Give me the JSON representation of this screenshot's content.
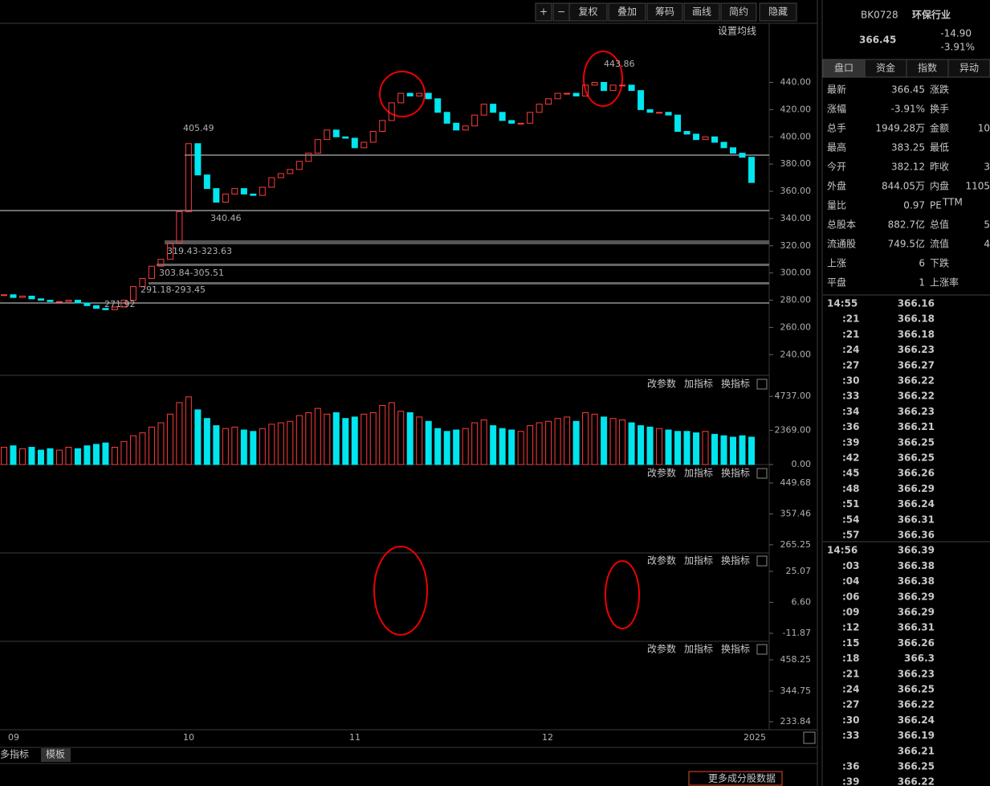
{
  "toolbar": [
    "+",
    "−",
    "复权",
    "叠加",
    "筹码",
    "画线",
    "简约",
    "隐藏"
  ],
  "panel_buttons": [
    "改参数",
    "加指标",
    "换指标"
  ],
  "bottom_tabs": [
    "多指标",
    "模板"
  ],
  "more_button": "更多成分股数据",
  "chart_data": {
    "type": "candlestick",
    "ma_button": "设置均线",
    "closes": [
      284,
      282,
      283,
      281,
      280,
      279,
      279,
      280,
      278,
      276,
      274,
      273,
      275,
      280,
      290,
      296,
      305,
      310,
      322,
      345,
      395,
      372,
      362,
      352,
      358,
      362,
      358,
      357,
      363,
      370,
      373,
      376,
      382,
      388,
      398,
      405,
      400,
      399,
      392,
      396,
      404,
      412,
      425,
      432,
      430,
      432,
      428,
      418,
      410,
      405,
      408,
      416,
      424,
      418,
      412,
      410,
      410,
      418,
      424,
      428,
      432,
      432,
      430,
      438,
      440,
      434,
      438,
      438,
      434,
      420,
      418,
      418,
      416,
      404,
      402,
      398,
      400,
      396,
      392,
      388,
      385,
      366.45
    ],
    "ylim": [
      226,
      471
    ],
    "yticks": [
      {
        "value": 440,
        "label": "440.00"
      },
      {
        "value": 420,
        "label": "420.00"
      },
      {
        "value": 400,
        "label": "400.00"
      },
      {
        "value": 380,
        "label": "380.00"
      },
      {
        "value": 360,
        "label": "360.00"
      },
      {
        "value": 340,
        "label": "340.00"
      },
      {
        "value": 320,
        "label": "320.00"
      },
      {
        "value": 300,
        "label": "300.00"
      },
      {
        "value": 280,
        "label": "280.00"
      },
      {
        "value": 260,
        "label": "260.00"
      },
      {
        "value": 240,
        "label": "240.00"
      }
    ],
    "annotations": [
      "405.49",
      "340.46",
      "319.43-323.63",
      "303.84-305.51",
      "291.18-293.45",
      "271.92",
      "443.86"
    ],
    "volume": {
      "values": [
        1200,
        1300,
        1100,
        1200,
        1000,
        1100,
        1000,
        1200,
        1100,
        1300,
        1400,
        1500,
        1200,
        1600,
        2000,
        2200,
        2600,
        2900,
        3500,
        4300,
        4700,
        3800,
        3200,
        2700,
        2500,
        2600,
        2400,
        2300,
        2500,
        2800,
        2900,
        3000,
        3400,
        3600,
        3900,
        3500,
        3600,
        3200,
        3300,
        3500,
        3600,
        4100,
        4300,
        3700,
        3600,
        3300,
        3000,
        2500,
        2300,
        2400,
        2500,
        2900,
        3100,
        2700,
        2500,
        2400,
        2300,
        2700,
        2900,
        3000,
        3200,
        3300,
        3000,
        3600,
        3500,
        3300,
        3200,
        3100,
        2900,
        2700,
        2600,
        2500,
        2400,
        2300,
        2300,
        2200,
        2300,
        2100,
        2000,
        1900,
        2000,
        1900
      ],
      "ylim": [
        0,
        6030
      ],
      "yticks": [
        {
          "value": 4737,
          "label": "4737.00"
        },
        {
          "value": 2369,
          "label": "2369.00"
        },
        {
          "value": 0,
          "label": "0.00"
        }
      ]
    },
    "panels": [
      {
        "ylim": [
          241,
          500
        ],
        "yticks": [
          449.68,
          357.46,
          265.25
        ]
      },
      {
        "ylim": [
          -16.2,
          35.1
        ],
        "yticks": [
          25.07,
          {
            "value": 6.6,
            "label": "6.60"
          },
          -11.87
        ]
      },
      {
        "ylim": [
          204.8,
          519.4
        ],
        "yticks": [
          458.25,
          344.75,
          233.84
        ]
      }
    ],
    "x_labels": [
      "09",
      "10",
      "11",
      "12",
      "2025"
    ]
  },
  "quote": {
    "code": "BK0728",
    "name": "环保行业",
    "price": "366.45",
    "change": "-14.90",
    "pct": "-3.91%",
    "tabs": [
      "盘口",
      "资金",
      "指数",
      "异动"
    ],
    "rows": [
      {
        "l1": "最新",
        "v1": "366.45",
        "l2": "涨跌"
      },
      {
        "l1": "涨幅",
        "v1": "-3.91%",
        "l2": "换手"
      },
      {
        "l1": "总手",
        "v1": "1949.28万",
        "l2": "金额",
        "v2": "10"
      },
      {
        "l1": "最高",
        "v1": "383.25",
        "l2": "最低"
      },
      {
        "l1": "今开",
        "v1": "382.12",
        "l2": "昨收",
        "v2": "3"
      },
      {
        "l1": "外盘",
        "v1": "844.05万",
        "l2": "内盘",
        "v2": "1105"
      },
      {
        "l1": "量比",
        "v1": "0.97",
        "l2": "PE",
        "l2_sup": "TTM"
      },
      {
        "l1": "总股本",
        "v1": "882.7亿",
        "l2": "总值",
        "v2": "5"
      },
      {
        "l1": "流通股",
        "v1": "749.5亿",
        "l2": "流值",
        "v2": "4"
      },
      {
        "l1": "上涨",
        "v1": "6",
        "l2": "下跌"
      },
      {
        "l1": "平盘",
        "v1": "1",
        "l2": "上涨率"
      }
    ],
    "ticks": [
      {
        "time": "14:55",
        "price": 366.16
      },
      {
        "time": ":21",
        "price": 366.18
      },
      {
        "time": ":21",
        "price": 366.18
      },
      {
        "time": ":24",
        "price": 366.23
      },
      {
        "time": ":27",
        "price": 366.27
      },
      {
        "time": ":30",
        "price": 366.22
      },
      {
        "time": ":33",
        "price": 366.22
      },
      {
        "time": ":34",
        "price": 366.23
      },
      {
        "time": ":36",
        "price": 366.21
      },
      {
        "time": ":39",
        "price": 366.25
      },
      {
        "time": ":42",
        "price": 366.25
      },
      {
        "time": ":45",
        "price": 366.26
      },
      {
        "time": ":48",
        "price": 366.29
      },
      {
        "time": ":51",
        "price": 366.24
      },
      {
        "time": ":54",
        "price": 366.31
      },
      {
        "time": ":57",
        "price": 366.36
      },
      {
        "time": "14:56",
        "price": 366.39
      },
      {
        "time": ":03",
        "price": 366.38
      },
      {
        "time": ":04",
        "price": 366.38
      },
      {
        "time": ":06",
        "price": 366.29
      },
      {
        "time": ":09",
        "price": 366.29
      },
      {
        "time": ":12",
        "price": 366.31
      },
      {
        "time": ":15",
        "price": 366.26
      },
      {
        "time": ":18",
        "price": 366.3
      },
      {
        "time": ":21",
        "price": 366.23
      },
      {
        "time": ":24",
        "price": 366.25
      },
      {
        "time": ":27",
        "price": 366.22
      },
      {
        "time": ":30",
        "price": 366.24
      },
      {
        "time": ":33",
        "price": 366.19
      },
      {
        "time": null,
        "price": 366.21
      },
      {
        "time": ":36",
        "price": 366.25
      },
      {
        "time": ":39",
        "price": 366.22
      }
    ]
  }
}
